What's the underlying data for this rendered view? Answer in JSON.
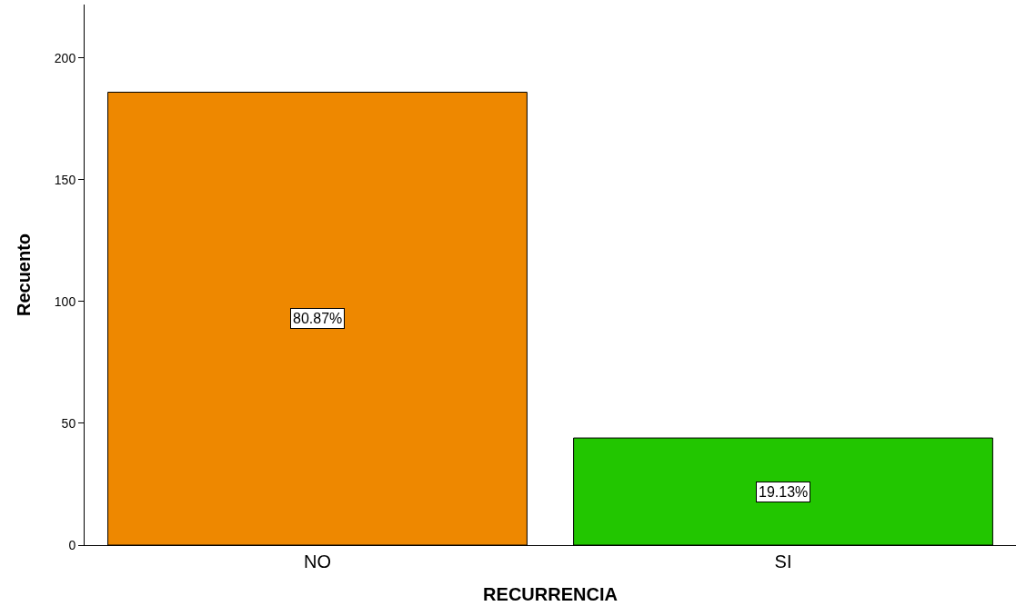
{
  "chart_data": {
    "type": "bar",
    "xlabel": "RECURRENCIA",
    "ylabel": "Recuento",
    "categories": [
      "NO",
      "SI"
    ],
    "values": [
      186,
      44
    ],
    "colors": [
      "#ee8800",
      "#22c600"
    ],
    "annotations": [
      "80.87%",
      "19.13%"
    ],
    "ylim": [
      0,
      222
    ],
    "yticks": [
      0,
      50,
      100,
      150,
      200
    ],
    "grid": false
  }
}
